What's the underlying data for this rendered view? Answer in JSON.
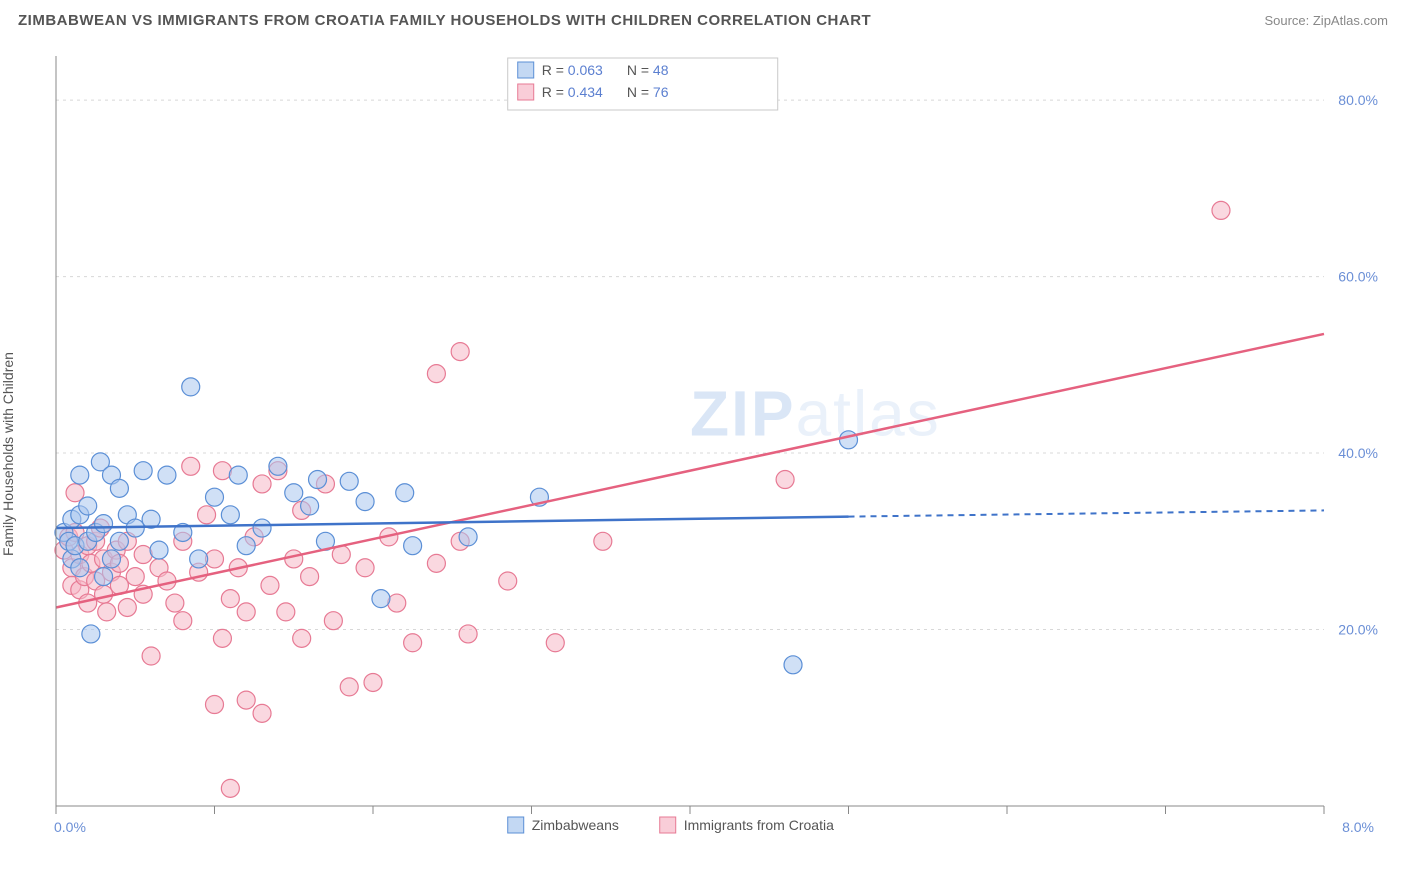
{
  "title": "ZIMBABWEAN VS IMMIGRANTS FROM CROATIA FAMILY HOUSEHOLDS WITH CHILDREN CORRELATION CHART",
  "source": "Source: ZipAtlas.com",
  "ylabel": "Family Households with Children",
  "watermark_a": "ZIP",
  "watermark_b": "atlas",
  "chart": {
    "type": "scatter-with-regression",
    "background": "#ffffff",
    "grid_color": "#d8d8d8",
    "axis_color": "#888888",
    "tick_color": "#888888",
    "xlim": [
      0.0,
      8.0
    ],
    "ylim": [
      0.0,
      85.0
    ],
    "xticks": [
      0.0,
      1.0,
      2.0,
      3.0,
      4.0,
      5.0,
      6.0,
      7.0,
      8.0
    ],
    "xtick_labels": {
      "0": "0.0%",
      "8": "8.0%"
    },
    "yticks": [
      20.0,
      40.0,
      60.0,
      80.0
    ],
    "ytick_labels": [
      "20.0%",
      "40.0%",
      "60.0%",
      "80.0%"
    ],
    "marker_radius": 9,
    "marker_stroke_width": 1.2,
    "line_width": 2.5,
    "dash_pattern": "6 5"
  },
  "series": {
    "zimbabwean": {
      "label": "Zimbabweans",
      "fill": "#a9c7ee",
      "stroke": "#5b8fd6",
      "fill_opacity": 0.55,
      "line_color": "#3f73c9",
      "R": "0.063",
      "N": "48",
      "reg_start": [
        0.0,
        31.5
      ],
      "reg_solid_end": [
        5.0,
        32.8
      ],
      "reg_dash_end": [
        8.0,
        33.5
      ],
      "points": [
        [
          0.05,
          31
        ],
        [
          0.08,
          30
        ],
        [
          0.1,
          28
        ],
        [
          0.1,
          32.5
        ],
        [
          0.12,
          29.5
        ],
        [
          0.15,
          33
        ],
        [
          0.15,
          37.5
        ],
        [
          0.15,
          27
        ],
        [
          0.2,
          30
        ],
        [
          0.2,
          34
        ],
        [
          0.22,
          19.5
        ],
        [
          0.25,
          31
        ],
        [
          0.28,
          39
        ],
        [
          0.3,
          26
        ],
        [
          0.3,
          32
        ],
        [
          0.35,
          28
        ],
        [
          0.35,
          37.5
        ],
        [
          0.4,
          30
        ],
        [
          0.4,
          36
        ],
        [
          0.45,
          33
        ],
        [
          0.5,
          31.5
        ],
        [
          0.55,
          38
        ],
        [
          0.6,
          32.5
        ],
        [
          0.65,
          29
        ],
        [
          0.7,
          37.5
        ],
        [
          0.8,
          31
        ],
        [
          0.85,
          47.5
        ],
        [
          0.9,
          28
        ],
        [
          1.0,
          35
        ],
        [
          1.1,
          33
        ],
        [
          1.15,
          37.5
        ],
        [
          1.2,
          29.5
        ],
        [
          1.3,
          31.5
        ],
        [
          1.4,
          38.5
        ],
        [
          1.5,
          35.5
        ],
        [
          1.6,
          34
        ],
        [
          1.65,
          37.0
        ],
        [
          1.7,
          30
        ],
        [
          1.85,
          36.8
        ],
        [
          1.95,
          34.5
        ],
        [
          2.05,
          23.5
        ],
        [
          2.2,
          35.5
        ],
        [
          2.25,
          29.5
        ],
        [
          2.6,
          30.5
        ],
        [
          3.05,
          35.0
        ],
        [
          4.65,
          16.0
        ],
        [
          5.0,
          41.5
        ]
      ]
    },
    "croatia": {
      "label": "Immigrants from Croatia",
      "fill": "#f6b8c7",
      "stroke": "#e77a94",
      "fill_opacity": 0.55,
      "line_color": "#e5617f",
      "R": "0.434",
      "N": "76",
      "reg_start": [
        0.0,
        22.5
      ],
      "reg_solid_end": [
        8.0,
        53.5
      ],
      "reg_dash_end": null,
      "points": [
        [
          0.05,
          29
        ],
        [
          0.08,
          30.5
        ],
        [
          0.1,
          27
        ],
        [
          0.1,
          25
        ],
        [
          0.12,
          35.5
        ],
        [
          0.12,
          31
        ],
        [
          0.15,
          28.5
        ],
        [
          0.15,
          24.5
        ],
        [
          0.18,
          26
        ],
        [
          0.2,
          29.5
        ],
        [
          0.2,
          23
        ],
        [
          0.22,
          27.5
        ],
        [
          0.25,
          30
        ],
        [
          0.25,
          25.5
        ],
        [
          0.28,
          31.5
        ],
        [
          0.3,
          24
        ],
        [
          0.3,
          28
        ],
        [
          0.32,
          22
        ],
        [
          0.35,
          26.5
        ],
        [
          0.38,
          29
        ],
        [
          0.4,
          25
        ],
        [
          0.4,
          27.5
        ],
        [
          0.45,
          30
        ],
        [
          0.45,
          22.5
        ],
        [
          0.5,
          26
        ],
        [
          0.55,
          24
        ],
        [
          0.55,
          28.5
        ],
        [
          0.6,
          17
        ],
        [
          0.65,
          27
        ],
        [
          0.7,
          25.5
        ],
        [
          0.75,
          23
        ],
        [
          0.8,
          30
        ],
        [
          0.8,
          21
        ],
        [
          0.85,
          38.5
        ],
        [
          0.9,
          26.5
        ],
        [
          0.95,
          33
        ],
        [
          1.0,
          11.5
        ],
        [
          1.0,
          28
        ],
        [
          1.05,
          19
        ],
        [
          1.05,
          38
        ],
        [
          1.1,
          23.5
        ],
        [
          1.1,
          2.0
        ],
        [
          1.15,
          27
        ],
        [
          1.2,
          12
        ],
        [
          1.2,
          22
        ],
        [
          1.25,
          30.5
        ],
        [
          1.3,
          36.5
        ],
        [
          1.3,
          10.5
        ],
        [
          1.35,
          25
        ],
        [
          1.4,
          38
        ],
        [
          1.45,
          22
        ],
        [
          1.5,
          28
        ],
        [
          1.55,
          33.5
        ],
        [
          1.55,
          19
        ],
        [
          1.6,
          26
        ],
        [
          1.7,
          36.5
        ],
        [
          1.75,
          21
        ],
        [
          1.8,
          28.5
        ],
        [
          1.85,
          13.5
        ],
        [
          1.95,
          27
        ],
        [
          2.0,
          14
        ],
        [
          2.1,
          30.5
        ],
        [
          2.15,
          23
        ],
        [
          2.25,
          18.5
        ],
        [
          2.4,
          49
        ],
        [
          2.4,
          27.5
        ],
        [
          2.55,
          51.5
        ],
        [
          2.55,
          30
        ],
        [
          2.6,
          19.5
        ],
        [
          2.85,
          25.5
        ],
        [
          3.15,
          18.5
        ],
        [
          3.45,
          30
        ],
        [
          4.6,
          37.0
        ],
        [
          7.35,
          67.5
        ]
      ]
    }
  },
  "legend_top": {
    "R_label": "R =",
    "N_label": "N ="
  },
  "legend_bottom": {
    "items": [
      "zimbabwean",
      "croatia"
    ]
  }
}
